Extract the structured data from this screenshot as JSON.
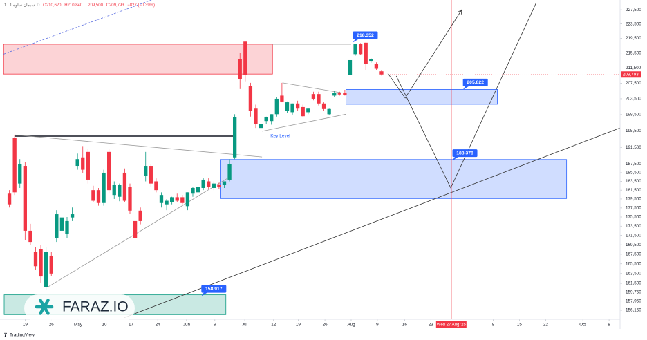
{
  "chart_data": {
    "type": "candlestick",
    "header": {
      "index": "1",
      "symbol": "سیمان ساوه",
      "interval": "1D",
      "open": "O210,620",
      "high": "H210,840",
      "low": "L209,500",
      "close": "C209,793",
      "change": "−827 (−0.39%)"
    },
    "colors": {
      "up": "#089981",
      "down": "#f23645"
    },
    "log_scale": true,
    "grid": false,
    "ylim": [
      154400,
      230300
    ],
    "xlim": [
      -4,
      113.5
    ],
    "yticks": [
      {
        "value": 227500,
        "label": "227,500"
      },
      {
        "value": 223500,
        "label": "223,500"
      },
      {
        "value": 219500,
        "label": "219,500"
      },
      {
        "value": 215500,
        "label": "215,500"
      },
      {
        "value": 211500,
        "label": "211,500"
      },
      {
        "value": 207500,
        "label": "207,500"
      },
      {
        "value": 203500,
        "label": "203,500"
      },
      {
        "value": 199500,
        "label": "199,500"
      },
      {
        "value": 195500,
        "label": "195,500"
      },
      {
        "value": 191500,
        "label": "191,500"
      },
      {
        "value": 187500,
        "label": "187,500"
      },
      {
        "value": 185500,
        "label": "185,500"
      },
      {
        "value": 183500,
        "label": "183,500"
      },
      {
        "value": 181500,
        "label": "181,500"
      },
      {
        "value": 179500,
        "label": "179,500"
      },
      {
        "value": 177500,
        "label": "177,500"
      },
      {
        "value": 175500,
        "label": "175,500"
      },
      {
        "value": 173500,
        "label": "173,500"
      },
      {
        "value": 171500,
        "label": "171,500"
      },
      {
        "value": 169500,
        "label": "169,500"
      },
      {
        "value": 167500,
        "label": "167,500"
      },
      {
        "value": 165500,
        "label": "165,500"
      },
      {
        "value": 163500,
        "label": "163,500"
      },
      {
        "value": 161500,
        "label": "161,500"
      },
      {
        "value": 159750,
        "label": "159,750"
      },
      {
        "value": 157950,
        "label": "157,950"
      },
      {
        "value": 156150,
        "label": "156,150"
      }
    ],
    "xticks": [
      {
        "value": 0,
        "label": "19"
      },
      {
        "value": 5,
        "label": "26"
      },
      {
        "value": 10.1,
        "label": "May"
      },
      {
        "value": 15.1,
        "label": "10"
      },
      {
        "value": 20.2,
        "label": "17"
      },
      {
        "value": 25.3,
        "label": "24"
      },
      {
        "value": 30.8,
        "label": "Jun"
      },
      {
        "value": 36.2,
        "label": "9"
      },
      {
        "value": 41.9,
        "label": "Jul"
      },
      {
        "value": 47.4,
        "label": "12"
      },
      {
        "value": 52.1,
        "label": "19"
      },
      {
        "value": 57.2,
        "label": "26"
      },
      {
        "value": 62.2,
        "label": "Aug"
      },
      {
        "value": 67.2,
        "label": "9"
      },
      {
        "value": 72.4,
        "label": "16"
      },
      {
        "value": 77.4,
        "label": "23"
      },
      {
        "value": 89.3,
        "label": "8"
      },
      {
        "value": 94.3,
        "label": "15"
      },
      {
        "value": 99.3,
        "label": "22"
      },
      {
        "value": 106.4,
        "label": "Oct"
      },
      {
        "value": 111.4,
        "label": "8"
      }
    ],
    "x": [
      -3,
      -2,
      -1,
      0,
      1,
      2,
      3,
      4,
      5,
      6,
      7,
      8,
      9,
      10,
      11,
      12,
      13,
      14,
      15,
      16,
      17,
      18,
      19,
      20,
      21,
      22,
      23,
      24,
      25,
      26,
      27,
      28,
      29,
      30,
      31,
      32,
      33,
      34,
      35,
      36,
      37,
      38,
      39,
      40,
      41,
      42,
      43,
      44,
      45,
      46,
      47,
      48,
      49,
      50,
      51,
      52,
      53,
      54,
      55,
      56,
      57,
      58,
      59,
      60,
      61,
      62,
      63,
      64,
      65,
      66,
      67,
      68
    ],
    "open": [
      180700,
      193700,
      183000,
      187100,
      172500,
      168000,
      168600,
      160800,
      167200,
      171000,
      172500,
      171800,
      175400,
      187100,
      189100,
      190400,
      181500,
      181500,
      178600,
      190400,
      180400,
      180000,
      185500,
      182300,
      174600,
      176900,
      184700,
      187100,
      183500,
      178600,
      178300,
      178800,
      179900,
      179900,
      177900,
      180700,
      181000,
      182000,
      183500,
      182000,
      182700,
      182700,
      183900,
      189100,
      213900,
      218600,
      206700,
      201000,
      196200,
      197900,
      197900,
      199600,
      204300,
      200500,
      200100,
      202300,
      201400,
      200100,
      204700,
      204700,
      202300,
      199600,
      204300,
      204900,
      204900,
      209700,
      215200,
      217900,
      218300,
      213400,
      212500,
      210620
    ],
    "high": [
      181500,
      194500,
      188700,
      188000,
      174000,
      169000,
      169500,
      169000,
      168000,
      177000,
      176000,
      175500,
      177600,
      190000,
      191800,
      191100,
      182500,
      182000,
      186200,
      191100,
      183500,
      183000,
      186500,
      183000,
      175400,
      177600,
      190400,
      187500,
      184200,
      181000,
      179500,
      180000,
      180700,
      180400,
      181000,
      182300,
      183000,
      184200,
      184200,
      183500,
      183200,
      183500,
      188700,
      199600,
      215500,
      218600,
      207600,
      202000,
      197600,
      199000,
      199600,
      204000,
      207600,
      202800,
      202300,
      203000,
      202000,
      201200,
      205300,
      205300,
      202600,
      201000,
      205500,
      205300,
      205800,
      213900,
      218000,
      218200,
      218352,
      214100,
      213000,
      210840
    ],
    "low": [
      177600,
      180400,
      182000,
      170500,
      169500,
      164300,
      161500,
      160100,
      163000,
      170100,
      171800,
      171000,
      174600,
      186200,
      185500,
      183000,
      178800,
      178000,
      178000,
      180700,
      179500,
      179000,
      178800,
      176100,
      169100,
      173900,
      183500,
      182300,
      181000,
      177600,
      177000,
      178300,
      178800,
      178300,
      177000,
      180000,
      180400,
      181500,
      181800,
      181500,
      181800,
      182000,
      183500,
      188700,
      206000,
      208000,
      199000,
      196200,
      195400,
      197200,
      197000,
      199000,
      202600,
      200000,
      199500,
      200500,
      198800,
      199600,
      203100,
      201800,
      200500,
      199300,
      203900,
      204300,
      204300,
      209200,
      214800,
      215000,
      211000,
      212900,
      211000,
      209500
    ],
    "close": [
      178300,
      181000,
      187500,
      172500,
      170100,
      165000,
      162900,
      168000,
      163500,
      176100,
      175400,
      174600,
      176100,
      188700,
      186200,
      183900,
      179100,
      178600,
      185500,
      181500,
      182700,
      182700,
      179100,
      176900,
      171000,
      174600,
      187100,
      183000,
      181500,
      180400,
      179100,
      179900,
      179100,
      178600,
      181000,
      182000,
      182300,
      183900,
      182300,
      183000,
      182300,
      183500,
      187500,
      198800,
      208500,
      209700,
      200500,
      197100,
      197100,
      198800,
      199600,
      203500,
      202800,
      202600,
      202300,
      201000,
      199100,
      201000,
      203500,
      202300,
      200900,
      200900,
      204900,
      204600,
      204500,
      213600,
      217900,
      215200,
      212500,
      213900,
      211300,
      209793
    ],
    "last_price": {
      "value": 209793,
      "label": "209,793"
    },
    "zones": [
      {
        "x": [
          -4.1,
          47.2
        ],
        "y": [
          209900,
          217900
        ],
        "color": "#f23645"
      },
      {
        "x": [
          61.2,
          90.1
        ],
        "y": [
          202100,
          205900
        ],
        "color": "#2962ff"
      },
      {
        "x": [
          37.2,
          103.3
        ],
        "y": [
          179600,
          188600
        ],
        "color": "#2962ff"
      },
      {
        "x": [
          -4,
          38.3
        ],
        "y": [
          155300,
          159200
        ],
        "color": "#089981"
      }
    ],
    "lines": [
      {
        "x": [
          -4.1,
          24.1
        ],
        "y": [
          215200,
          230300
        ],
        "color": "#5b6ee1",
        "width": 0.8,
        "dash": true
      },
      {
        "x": [
          -1.9,
          40.3
        ],
        "y": [
          194200,
          194200
        ],
        "color": "#131722",
        "width": 1.5
      },
      {
        "x": [
          -1.9,
          45.2
        ],
        "y": [
          194500,
          189200
        ],
        "color": "#9a9a9a",
        "width": 0.8
      },
      {
        "x": [
          4.4,
          38.6
        ],
        "y": [
          160800,
          184200
        ],
        "color": "#9a9a9a",
        "width": 0.8
      },
      {
        "x": [
          18.9,
          113.5
        ],
        "y": [
          154700,
          196200
        ],
        "color": "#333333",
        "width": 0.8
      },
      {
        "x": [
          49.1,
          60.9
        ],
        "y": [
          207600,
          204900
        ],
        "color": "#9a9a9a",
        "width": 0.8
      },
      {
        "x": [
          45.2,
          61.2
        ],
        "y": [
          195400,
          199600
        ],
        "color": "#9a9a9a",
        "width": 0.8
      },
      {
        "x": [
          47.2,
          62.2
        ],
        "y": [
          217900,
          217900
        ],
        "color": "#9a9a9a",
        "width": 0.8
      },
      {
        "x": [
          69.2,
          72.5,
          83.3
        ],
        "y": [
          210100,
          203700,
          227500
        ],
        "color": "#333333",
        "width": 0.8,
        "arrow": true
      },
      {
        "x": [
          70.8,
          81.2,
          97.5
        ],
        "y": [
          209400,
          182000,
          229500
        ],
        "color": "#333333",
        "width": 0.8
      }
    ],
    "callouts": [
      {
        "x": 64.9,
        "value": 218352,
        "label": "218,352"
      },
      {
        "x": 85.9,
        "value": 205822,
        "label": "205,822"
      },
      {
        "x": 83.9,
        "value": 188378,
        "label": "188,378"
      },
      {
        "x": 36,
        "value": 158917,
        "label": "158,917"
      }
    ],
    "text_annotations": [
      {
        "text": "Key Level",
        "x": 46.8,
        "y": 194200,
        "color": "#2962ff"
      }
    ],
    "marker": {
      "x": 81.3,
      "label": "Wed 27 Aug '25",
      "color": "#f23645"
    },
    "watermark": "FARAZ.IO",
    "footer": "TradingView"
  }
}
